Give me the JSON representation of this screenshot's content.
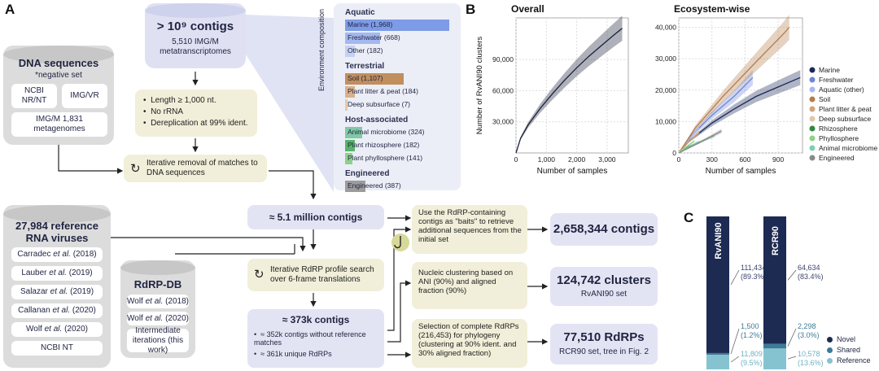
{
  "panel_a": {
    "letter": "A",
    "dna_db": {
      "title": "DNA sequences",
      "subtitle": "*negative set",
      "items": [
        "NCBI NR/NT",
        "IMG/VR",
        "IMG/M 1,831 metagenomes"
      ]
    },
    "contigs_db": {
      "title": "> 10⁹ contigs",
      "subtitle": "5,510 IMG/M metatranscriptomes"
    },
    "filters": [
      "Length ≥ 1,000 nt.",
      "No rRNA",
      "Dereplication at 99% ident."
    ],
    "iterative_removal": "Iterative removal of matches to DNA sequences",
    "environment": {
      "axis_label": "Environment composition",
      "groups": [
        {
          "name": "Aquatic",
          "items": [
            {
              "label": "Marine (1,968)",
              "value": 1968,
              "color": "#7d9be6"
            },
            {
              "label": "Freshwater (668)",
              "value": 668,
              "color": "#a3b8ef"
            },
            {
              "label": "Other (182)",
              "value": 182,
              "color": "#c5d1f3"
            }
          ]
        },
        {
          "name": "Terrestrial",
          "items": [
            {
              "label": "Soil (1,107)",
              "value": 1107,
              "color": "#c18e5e"
            },
            {
              "label": "Plant litter & peat (184)",
              "value": 184,
              "color": "#d9b08b"
            },
            {
              "label": "Deep subsurface (7)",
              "value": 7,
              "color": "#e6c9a8"
            }
          ]
        },
        {
          "name": "Host-associated",
          "items": [
            {
              "label": "Animal microbiome (324)",
              "value": 324,
              "color": "#7fc9a5"
            },
            {
              "label": "Plant rhizosphere (182)",
              "value": 182,
              "color": "#58b36a"
            },
            {
              "label": "Plant phyllosphere (141)",
              "value": 141,
              "color": "#8ed08d"
            }
          ]
        },
        {
          "name": "Engineered",
          "items": [
            {
              "label": "Engineered (387)",
              "value": 387,
              "color": "#9c9c9c"
            }
          ]
        }
      ]
    },
    "ref_db": {
      "title": "27,984 reference RNA viruses",
      "items": [
        {
          "pre": "Carradec ",
          "it": "et al.",
          "post": " (2018)"
        },
        {
          "pre": "Lauber ",
          "it": "et al.",
          "post": " (2019)"
        },
        {
          "pre": "Salazar ",
          "it": "et al.",
          "post": " (2019)"
        },
        {
          "pre": "Callanan ",
          "it": "et al.",
          "post": " (2020)"
        },
        {
          "pre": "Wolf ",
          "it": "et al.",
          "post": " (2020)"
        },
        {
          "pre": "NCBI NT",
          "it": "",
          "post": ""
        }
      ]
    },
    "rdrp_db": {
      "title": "RdRP-DB",
      "items": [
        {
          "pre": "Wolf ",
          "it": "et al.",
          "post": " (2018)"
        },
        {
          "pre": "Wolf ",
          "it": "et al.",
          "post": " (2020)"
        },
        {
          "pre": "Intermediate iterations (this work)",
          "it": "",
          "post": ""
        }
      ]
    },
    "million_contigs": "≈ 5.1 million contigs",
    "profile_search": "Iterative RdRP profile search over 6-frame translations",
    "k373": {
      "title": "≈ 373k contigs",
      "bullets": [
        "≈ 352k contigs without reference matches",
        "≈ 361k unique RdRPs"
      ]
    },
    "steps": [
      {
        "text": "Use the RdRP-containing contigs as \"baits\" to retrieve additional sequences from the initial set",
        "result": "2,658,344 contigs",
        "sub": ""
      },
      {
        "text": "Nucleic clustering based on ANI (90%) and aligned fraction (90%)",
        "result": "124,742 clusters",
        "sub": "RvANI90 set"
      },
      {
        "text": "Selection of complete RdRPs (216,453) for phylogeny (clustering at 90% ident. and 30% aligned fraction)",
        "result": "77,510 RdRPs",
        "sub": "RCR90 set, tree in Fig. 2"
      }
    ]
  },
  "panel_b": {
    "letter": "B",
    "chart_data": [
      {
        "type": "line",
        "title": "Overall",
        "xlabel": "Number of samples",
        "ylabel": "Number of RvANI90 clusters",
        "xlim": [
          0,
          3700
        ],
        "ylim": [
          0,
          130000
        ],
        "xticks": [
          0,
          1000,
          2000,
          3000
        ],
        "yticks": [
          30000,
          60000,
          90000
        ],
        "xtick_labels": [
          "0",
          "1,000",
          "2,000",
          "3,000"
        ],
        "ytick_labels": [
          "30,000",
          "60,000",
          "90,000"
        ],
        "grid": true,
        "series": [
          {
            "x": [
              0,
              150,
              400,
              800,
              1200,
              1600,
              2000,
              2400,
              2800,
              3200,
              3500
            ],
            "y": [
              0,
              14000,
              27000,
              43000,
              57000,
              70000,
              82000,
              93000,
              103000,
              113000,
              120000
            ],
            "color": "#1b1f3a"
          }
        ]
      },
      {
        "type": "line",
        "title": "Ecosystem-wise",
        "xlabel": "Number of samples",
        "ylabel": "",
        "xlim": [
          0,
          1120
        ],
        "ylim": [
          0,
          43000
        ],
        "xticks": [
          0,
          300,
          600,
          900
        ],
        "yticks": [
          0,
          10000,
          20000,
          30000,
          40000
        ],
        "xtick_labels": [
          "0",
          "300",
          "600",
          "900"
        ],
        "ytick_labels": [
          "0",
          "10,000",
          "20,000",
          "30,000",
          "40,000"
        ],
        "grid": true,
        "legend_position": "right",
        "series": [
          {
            "name": "Marine",
            "color": "#1b2a5a",
            "x": [
              0,
              100,
              300,
              500,
              700,
              900,
              1100
            ],
            "y": [
              0,
              4000,
              9500,
              14000,
              18000,
              21000,
              24000
            ]
          },
          {
            "name": "Freshwater",
            "color": "#6f86d6",
            "x": [
              0,
              100,
              300,
              500,
              670
            ],
            "y": [
              0,
              5000,
              12000,
              18000,
              24000
            ]
          },
          {
            "name": "Aquatic (other)",
            "color": "#a9b8ee",
            "x": [
              0,
              60,
              120,
              182
            ],
            "y": [
              0,
              3000,
              5500,
              8000
            ]
          },
          {
            "name": "Soil",
            "color": "#b57d4c",
            "x": [
              0,
              150,
              400,
              700,
              950,
              1000
            ],
            "y": [
              0,
              8000,
              18000,
              29000,
              38000,
              40000
            ]
          },
          {
            "name": "Plant litter & peat",
            "color": "#d2a47a",
            "x": [
              0,
              90,
              184
            ],
            "y": [
              0,
              3500,
              6500
            ]
          },
          {
            "name": "Deep subsurface",
            "color": "#e0c7a8",
            "x": [
              0,
              7
            ],
            "y": [
              0,
              500
            ]
          },
          {
            "name": "Rhizosphere",
            "color": "#2f8a41",
            "x": [
              0,
              90,
              182
            ],
            "y": [
              0,
              2000,
              3500
            ]
          },
          {
            "name": "Phyllosphere",
            "color": "#8fd08a",
            "x": [
              0,
              70,
              141
            ],
            "y": [
              0,
              2000,
              3800
            ]
          },
          {
            "name": "Animal microbiome",
            "color": "#7fcfb0",
            "x": [
              0,
              150,
              324
            ],
            "y": [
              0,
              3000,
              5500
            ]
          },
          {
            "name": "Engineered",
            "color": "#8a8a8a",
            "x": [
              0,
              200,
              387
            ],
            "y": [
              0,
              3500,
              7000
            ]
          }
        ]
      }
    ]
  },
  "panel_c": {
    "letter": "C",
    "legend": [
      {
        "name": "Novel",
        "color": "#1d2a52"
      },
      {
        "name": "Shared",
        "color": "#3e7a99"
      },
      {
        "name": "Reference",
        "color": "#86c3d1"
      }
    ],
    "chart_data": {
      "type": "bar",
      "stacked": true,
      "categories": [
        "RvANI90",
        "RCR90"
      ],
      "series": [
        {
          "name": "Novel",
          "values": [
            111434,
            64634
          ],
          "labels": [
            "111,434",
            "64,634"
          ],
          "pct": [
            "(89.3%)",
            "(83.4%)"
          ]
        },
        {
          "name": "Shared",
          "values": [
            1500,
            2298
          ],
          "labels": [
            "1,500",
            "2,298"
          ],
          "pct": [
            "(1.2%)",
            "(3.0%)"
          ]
        },
        {
          "name": "Reference",
          "values": [
            11809,
            10578
          ],
          "labels": [
            "11,809",
            "10,578"
          ],
          "pct": [
            "(9.5%)",
            "(13.6%)"
          ]
        }
      ]
    }
  }
}
